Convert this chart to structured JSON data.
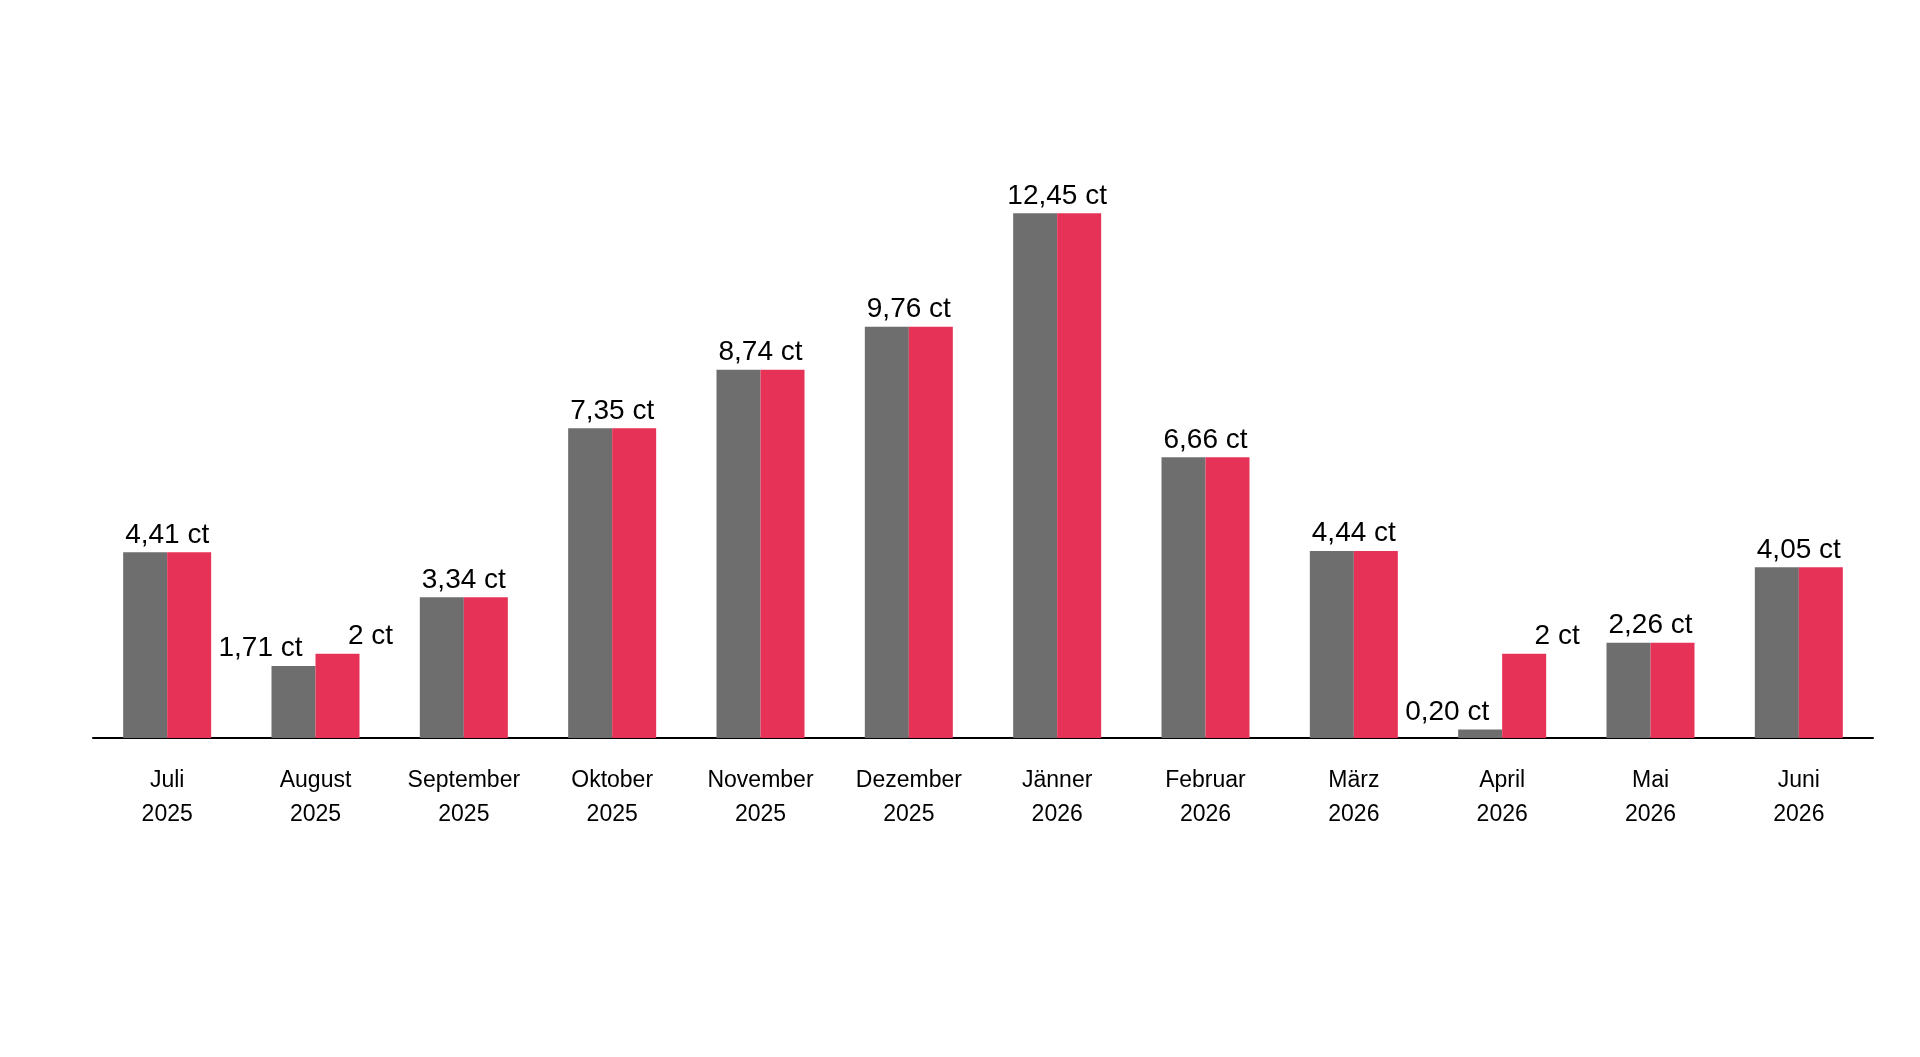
{
  "chart_data": {
    "type": "bar",
    "categories": [
      "Juli\n2025",
      "August\n2025",
      "September\n2025",
      "Oktober\n2025",
      "November\n2025",
      "Dezember\n2025",
      "Jänner\n2026",
      "Februar\n2026",
      "März\n2026",
      "April\n2026",
      "Mai\n2026",
      "Juni\n2026"
    ],
    "series": [
      {
        "color": "#6e6e6e",
        "values": [
          4.41,
          1.71,
          3.34,
          7.35,
          8.74,
          9.76,
          12.45,
          6.66,
          4.44,
          0.2,
          2.26,
          4.05
        ],
        "value_labels": [
          "4,41 ct",
          "1,71 ct",
          "3,34 ct",
          "7,35 ct",
          "8,74 ct",
          "9,76 ct",
          "12,45 ct",
          "6,66 ct",
          "4,44 ct",
          "0,20 ct",
          "2,26 ct",
          "4,05 ct"
        ]
      },
      {
        "color": "#e63257",
        "values": [
          4.41,
          2,
          3.34,
          7.35,
          8.74,
          9.76,
          12.45,
          6.66,
          4.44,
          2,
          2.26,
          4.05
        ],
        "value_labels": [
          null,
          "2 ct",
          null,
          null,
          null,
          null,
          null,
          null,
          null,
          "2 ct",
          null,
          null
        ]
      }
    ]
  }
}
